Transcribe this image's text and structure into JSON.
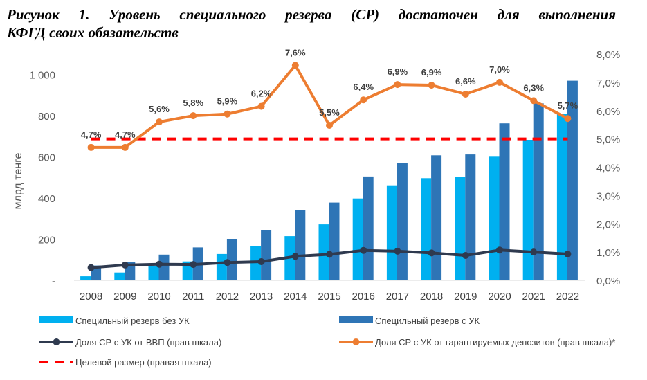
{
  "header": {
    "title_line1": "Рисунок 1. Уровень специального резерва (СР) достаточен для выполнения",
    "title_line2": "КФГД своих обязательств"
  },
  "chart_data": {
    "type": "bar",
    "title": "Рисунок 1. Уровень специального резерва (СР) достаточен для выполнения КФГД своих обязательств",
    "ylabel": "млрд тенге",
    "ylim": [
      0,
      1100
    ],
    "y2lim": [
      0,
      8
    ],
    "categories": [
      "2008",
      "2009",
      "2010",
      "2011",
      "2012",
      "2013",
      "2014",
      "2015",
      "2016",
      "2017",
      "2018",
      "2019",
      "2020",
      "2021",
      "2022"
    ],
    "y_ticks": [
      {
        "value": 0,
        "label": "-"
      },
      {
        "value": 200,
        "label": "200"
      },
      {
        "value": 400,
        "label": "400"
      },
      {
        "value": 600,
        "label": "600"
      },
      {
        "value": 800,
        "label": "800"
      },
      {
        "value": 1000,
        "label": "1 000"
      }
    ],
    "y2_ticks": [
      {
        "value": 0,
        "label": "0,0%"
      },
      {
        "value": 1,
        "label": "1,0%"
      },
      {
        "value": 2,
        "label": "2,0%"
      },
      {
        "value": 3,
        "label": "3,0%"
      },
      {
        "value": 4,
        "label": "4,0%"
      },
      {
        "value": 5,
        "label": "5,0%"
      },
      {
        "value": 6,
        "label": "6,0%"
      },
      {
        "value": 7,
        "label": "7,0%"
      },
      {
        "value": 8,
        "label": "8,0%"
      }
    ],
    "series": [
      {
        "name": "Специльный резерв без УК",
        "type": "bar",
        "axis": "left",
        "color": "#00b0f0",
        "values": [
          20,
          38,
          68,
          92,
          128,
          165,
          215,
          272,
          398,
          462,
          497,
          503,
          601,
          683,
          810
        ]
      },
      {
        "name": "Специльный резерв с УК",
        "type": "bar",
        "axis": "left",
        "color": "#2e75b6",
        "values": [
          72,
          90,
          125,
          160,
          201,
          243,
          340,
          378,
          505,
          571,
          608,
          612,
          763,
          860,
          970
        ]
      },
      {
        "name": "Доля СР с УК от ВВП (прав шкала)",
        "type": "line",
        "axis": "right",
        "color": "#2f3a4f",
        "values": [
          0.45,
          0.54,
          0.57,
          0.56,
          0.63,
          0.66,
          0.85,
          0.92,
          1.06,
          1.03,
          0.97,
          0.88,
          1.07,
          1.0,
          0.93
        ]
      },
      {
        "name": "Доля СР с УК от гарантируемых депозитов (прав шкала)*",
        "type": "line",
        "axis": "right",
        "color": "#ed7d31",
        "values": [
          4.7,
          4.7,
          5.6,
          5.82,
          5.88,
          6.15,
          7.6,
          5.48,
          6.38,
          6.92,
          6.9,
          6.58,
          7.0,
          6.35,
          5.72
        ],
        "labels": [
          "4,7%",
          "4,7%",
          "5,6%",
          "5,8%",
          "5,9%",
          "6,2%",
          "7,6%",
          "5,5%",
          "6,4%",
          "6,9%",
          "6,9%",
          "6,6%",
          "7,0%",
          "6,3%",
          "5,7%"
        ]
      },
      {
        "name": "Целевой размер (правая шкала)",
        "type": "dashed",
        "axis": "right",
        "color": "#ff0000",
        "values": [
          5.0,
          5.0,
          5.0,
          5.0,
          5.0,
          5.0,
          5.0,
          5.0,
          5.0,
          5.0,
          5.0,
          5.0,
          5.0,
          5.0,
          5.0
        ]
      }
    ],
    "legend": {
      "position": "bottom",
      "items": [
        {
          "label": "Специльный резерв без УК",
          "kind": "rect",
          "color": "#00b0f0"
        },
        {
          "label": "Специльный резерв с УК",
          "kind": "rect",
          "color": "#2e75b6"
        },
        {
          "label": "Доля СР с УК от ВВП (прав шкала)",
          "kind": "line-marker",
          "color": "#2f3a4f"
        },
        {
          "label": "Доля СР с УК от гарантируемых депозитов (прав шкала)*",
          "kind": "line-marker",
          "color": "#ed7d31"
        },
        {
          "label": "Целевой размер (правая шкала)",
          "kind": "dash",
          "color": "#ff0000"
        }
      ]
    }
  }
}
